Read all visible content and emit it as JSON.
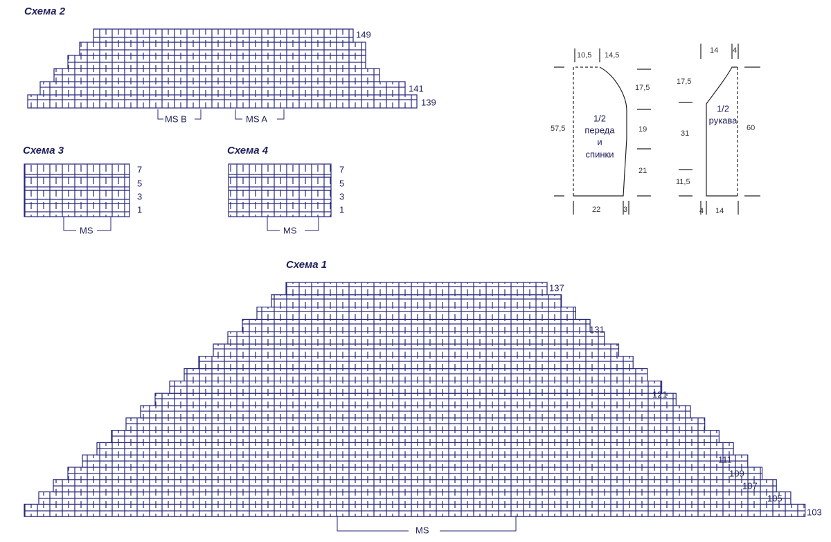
{
  "schemes": [
    {
      "title": "Схема 2",
      "row_numbers": [
        "149",
        "141",
        "139"
      ],
      "labels": [
        "MS B",
        "MS A"
      ]
    },
    {
      "title": "Схема 3",
      "row_numbers": [
        "7",
        "5",
        "3",
        "1"
      ],
      "labels": [
        "MS"
      ]
    },
    {
      "title": "Схема 4",
      "row_numbers": [
        "7",
        "5",
        "3",
        "1"
      ],
      "labels": [
        "MS"
      ]
    },
    {
      "title": "Схема 1",
      "row_numbers": [
        "137",
        "131",
        "121",
        "111",
        "109",
        "107",
        "105",
        "103"
      ],
      "labels": [
        "MS"
      ]
    }
  ],
  "patterns": [
    {
      "title_lines": [
        "1/2",
        "переда",
        "и",
        "спинки"
      ],
      "measurements": [
        "10,5",
        "14,5",
        "17,5",
        "57,5",
        "19",
        "21",
        "22",
        "3"
      ]
    },
    {
      "title_lines": [
        "1/2",
        "рукава"
      ],
      "measurements": [
        "14",
        "4",
        "17,5",
        "31",
        "60",
        "11,5",
        "4",
        "14"
      ]
    }
  ]
}
